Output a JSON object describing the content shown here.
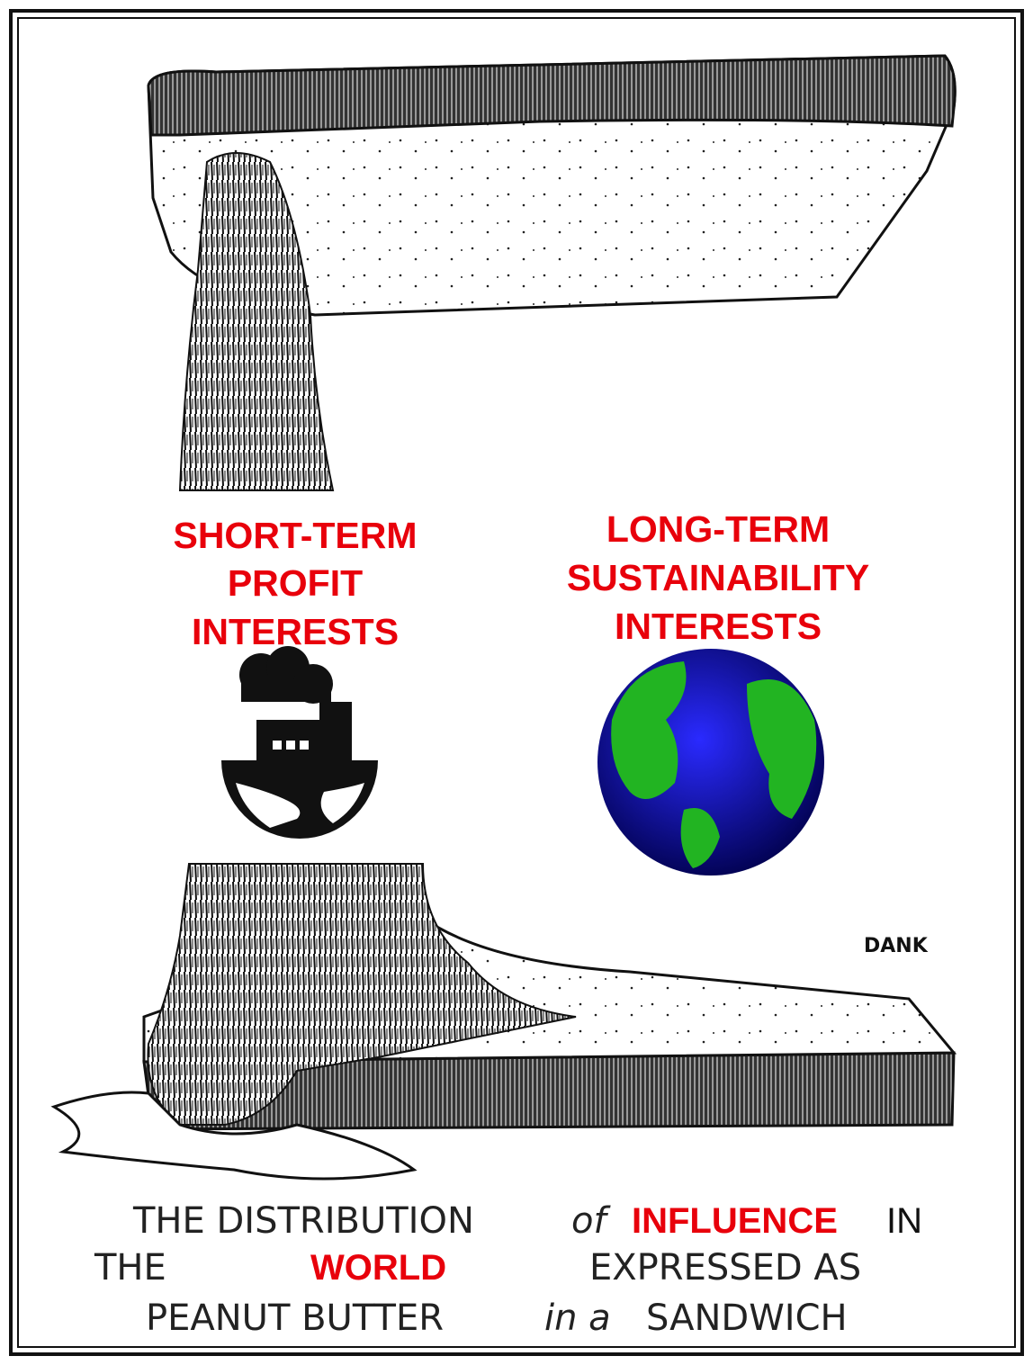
{
  "labels": {
    "left": [
      "SHORT-TERM",
      "PROFIT",
      "INTERESTS"
    ],
    "right": [
      "LONG-TERM",
      "SUSTAINABILITY",
      "INTERESTS"
    ]
  },
  "signature": "DANK",
  "caption": [
    [
      "THE DISTRIBUTION",
      "of",
      "INFLUENCE",
      "IN"
    ],
    [
      "THE",
      "WORLD",
      "EXPRESSED AS"
    ],
    [
      "PEANUT BUTTER",
      "in a",
      "SANDWICH"
    ]
  ]
}
